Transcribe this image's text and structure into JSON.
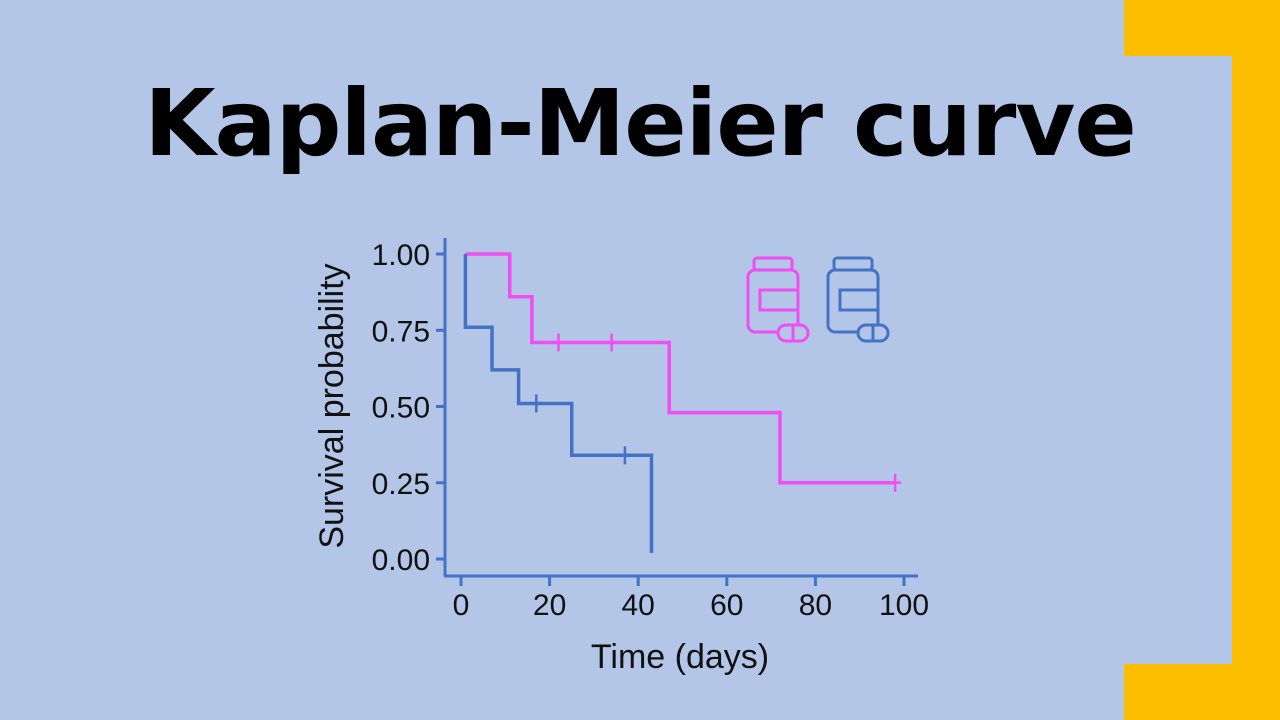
{
  "title": "Kaplan-Meier curve",
  "colors": {
    "background": "#b3c6e7",
    "accent": "#fdbe00",
    "series_1": "#ef4ef0",
    "series_2": "#4472c4",
    "text": "#111111"
  },
  "legend_icons": [
    {
      "icon": "medicine-bottle-icon",
      "color": "#ef4ef0"
    },
    {
      "icon": "medicine-bottle-icon",
      "color": "#4472c4"
    }
  ],
  "chart_data": {
    "type": "line",
    "step": true,
    "xlabel": "Time (days)",
    "ylabel": "Survival probability",
    "xlim": [
      0,
      100
    ],
    "ylim": [
      0,
      1
    ],
    "xticks": [
      0,
      20,
      40,
      60,
      80,
      100
    ],
    "yticks": [
      0.0,
      0.25,
      0.5,
      0.75,
      1.0
    ],
    "xtick_labels": [
      "0",
      "20",
      "40",
      "60",
      "80",
      "100"
    ],
    "ytick_labels": [
      "0.00",
      "0.25",
      "0.50",
      "0.75",
      "1.00"
    ],
    "grid": false,
    "legend": "top-right",
    "series": [
      {
        "color": "#ef4ef0",
        "x": [
          1,
          11,
          16,
          47,
          72,
          98
        ],
        "y": [
          1.0,
          0.86,
          0.71,
          0.48,
          0.25,
          0.25
        ],
        "censored": [
          {
            "x": 22,
            "y": 0.71
          },
          {
            "x": 34,
            "y": 0.71
          },
          {
            "x": 98,
            "y": 0.25
          }
        ]
      },
      {
        "color": "#4472c4",
        "x": [
          1,
          7,
          13,
          25,
          43
        ],
        "y": [
          0.76,
          0.62,
          0.51,
          0.34,
          0.02
        ],
        "start": 1.0,
        "censored": [
          {
            "x": 17,
            "y": 0.51
          },
          {
            "x": 37,
            "y": 0.34
          }
        ]
      }
    ]
  }
}
